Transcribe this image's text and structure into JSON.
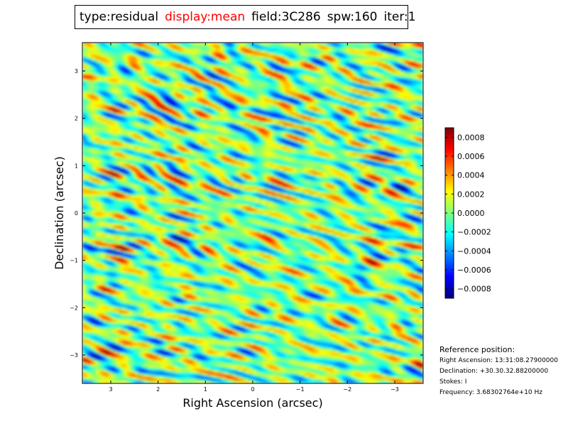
{
  "title_bar": {
    "type": "type:residual",
    "display": "display:mean",
    "field": "field:3C286",
    "spw": "spw:160",
    "iter": "iter:1",
    "display_color": "#ff0000"
  },
  "chart_data": {
    "type": "heatmap",
    "title": "type:residual display:mean field:3C286 spw:160 iter:1",
    "xlabel": "Right Ascension (arcsec)",
    "ylabel": "Declination (arcsec)",
    "xlim": [
      3.6,
      -3.6
    ],
    "ylim": [
      -3.6,
      3.6
    ],
    "x_ticks": [
      3,
      2,
      1,
      0,
      -1,
      -2,
      -3
    ],
    "x_tick_labels": [
      "3",
      "2",
      "1",
      "0",
      "−1",
      "−2",
      "−3"
    ],
    "y_ticks": [
      3,
      2,
      1,
      0,
      -1,
      -2,
      -3
    ],
    "y_tick_labels": [
      "3",
      "2",
      "1",
      "0",
      "−1",
      "−2",
      "−3"
    ],
    "colormap": "jet",
    "vmin": -0.0009,
    "vmax": 0.0009,
    "colorbar_ticks": [
      0.0008,
      0.0006,
      0.0004,
      0.0002,
      0.0,
      -0.0002,
      -0.0004,
      -0.0006,
      -0.0008
    ],
    "colorbar_tick_labels": [
      "0.0008",
      "0.0006",
      "0.0004",
      "0.0002",
      "0.0000",
      "−0.0002",
      "−0.0004",
      "−0.0006",
      "−0.0008"
    ],
    "colormap_stops": [
      "#00007f",
      "#0000ff",
      "#007fff",
      "#00ffff",
      "#7fff7f",
      "#ffff00",
      "#ff7f00",
      "#ff0000",
      "#7f0000"
    ]
  },
  "reference": {
    "title": "Reference position:",
    "ra": "Right Ascension: 13:31:08.27900000",
    "dec": "Declination: +30.30.32.88200000",
    "stokes": "Stokes: I",
    "frequency": "Frequency: 3.68302764e+10 Hz"
  }
}
